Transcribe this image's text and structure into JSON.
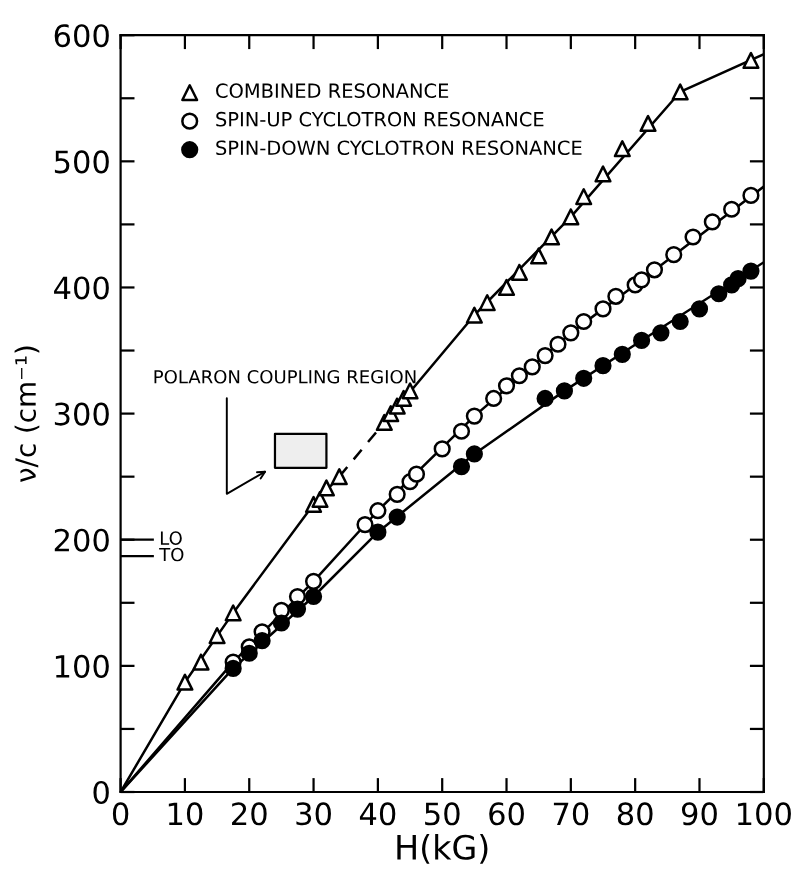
{
  "chart_data": {
    "type": "scatter",
    "xlabel": "H(kG)",
    "ylabel": "ν/c (cm⁻¹)",
    "xlim": [
      0,
      100
    ],
    "ylim": [
      0,
      600
    ],
    "xticks": [
      0,
      10,
      20,
      30,
      40,
      50,
      60,
      70,
      80,
      90,
      100
    ],
    "yticks": [
      0,
      {
        "value": 50,
        "label": null
      },
      100,
      {
        "value": 150,
        "label": null
      },
      200,
      {
        "value": 250,
        "label": null
      },
      300,
      {
        "value": 350,
        "label": null
      },
      400,
      {
        "value": 450,
        "label": null
      },
      500,
      {
        "value": 550,
        "label": null
      },
      600
    ],
    "grid": false,
    "legend": "top left",
    "series": [
      {
        "name": "COMBINED RESONANCE",
        "marker": "triangle",
        "color": "#ffffff",
        "x": [
          10,
          12.5,
          15,
          17.5,
          30,
          31,
          32,
          34,
          41,
          42,
          43,
          44,
          45,
          55,
          57,
          60,
          62,
          65,
          67,
          70,
          72,
          75,
          78,
          82,
          87,
          98
        ],
        "values": [
          87,
          103,
          124,
          142,
          228,
          232,
          241,
          250,
          293,
          300,
          306,
          312,
          318,
          378,
          388,
          400,
          412,
          425,
          440,
          456,
          472,
          490,
          510,
          530,
          555,
          580
        ]
      },
      {
        "name": "SPIN-UP CYCLOTRON RESONANCE",
        "marker": "circle",
        "color": "#ffffff",
        "x": [
          17.5,
          20,
          22,
          25,
          27.5,
          30,
          38,
          40,
          43,
          45,
          46,
          50,
          53,
          55,
          58,
          60,
          62,
          64,
          66,
          68,
          70,
          72,
          75,
          77,
          80,
          81,
          83,
          86,
          89,
          92,
          95,
          98
        ],
        "values": [
          103,
          115,
          127,
          144,
          155,
          167,
          212,
          223,
          236,
          246,
          252,
          272,
          286,
          298,
          312,
          322,
          330,
          337,
          346,
          355,
          364,
          373,
          383,
          393,
          402,
          406,
          414,
          426,
          440,
          452,
          462,
          473
        ]
      },
      {
        "name": "SPIN-DOWN CYCLOTRON RESONANCE",
        "marker": "circle",
        "color": "#000000",
        "x": [
          17.5,
          20,
          22,
          25,
          27.5,
          30,
          40,
          43,
          53,
          55,
          66,
          69,
          72,
          75,
          78,
          81,
          84,
          87,
          90,
          93,
          95,
          96,
          98
        ],
        "values": [
          98,
          110,
          120,
          134,
          145,
          155,
          206,
          218,
          258,
          268,
          312,
          318,
          328,
          338,
          347,
          358,
          364,
          373,
          383,
          395,
          402,
          407,
          413
        ]
      },
      {
        "type": "line",
        "line_style": "solid",
        "color": "#000000",
        "x": [
          0,
          10,
          17.5,
          30,
          34
        ],
        "values": [
          0,
          87,
          142,
          228,
          250
        ]
      },
      {
        "type": "line",
        "line_style": "dashed",
        "color": "#000000",
        "x": [
          34,
          41
        ],
        "values": [
          250,
          293
        ]
      },
      {
        "type": "line",
        "line_style": "solid",
        "color": "#000000",
        "x": [
          41,
          55,
          70,
          87,
          100
        ],
        "values": [
          293,
          378,
          456,
          555,
          585
        ]
      },
      {
        "type": "line",
        "line_style": "solid",
        "color": "#000000",
        "x": [
          0,
          17.5,
          30,
          40,
          55,
          70,
          80,
          100
        ],
        "values": [
          0,
          103,
          167,
          223,
          298,
          364,
          402,
          480
        ]
      },
      {
        "type": "line",
        "line_style": "solid",
        "color": "#000000",
        "x": [
          0,
          17.5,
          30,
          40,
          55,
          69,
          81,
          100
        ],
        "values": [
          0,
          98,
          155,
          206,
          268,
          318,
          358,
          420
        ]
      }
    ],
    "ref_lines": [
      {
        "axis": "y",
        "value": 200,
        "label": "LO"
      },
      {
        "axis": "y",
        "value": 187,
        "label": "TO"
      }
    ],
    "bands": [
      {
        "axis": "y",
        "from": 257,
        "to": 284,
        "label": "POLARON COUPLING REGION"
      }
    ]
  }
}
